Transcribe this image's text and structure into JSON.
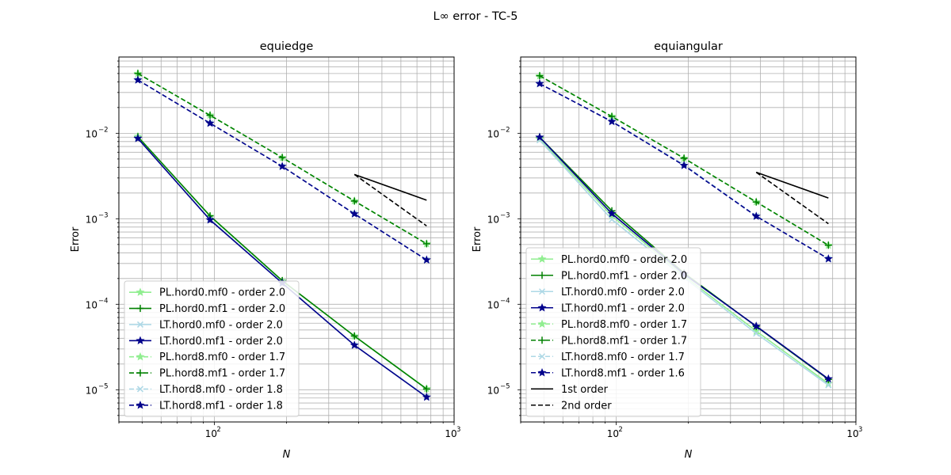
{
  "figure": {
    "suptitle": "L∞ error - TC-5"
  },
  "chart_data": [
    {
      "type": "line",
      "title": "equiedge",
      "xlabel": "N",
      "ylabel": "Error",
      "xscale": "log",
      "yscale": "log",
      "xlim": [
        40,
        1000
      ],
      "ylim": [
        4.2e-06,
        0.078
      ],
      "grid": true,
      "legend_position": "lower-left",
      "x_ticks": [
        {
          "mantissa": "10",
          "exponent": "2",
          "value": 100
        },
        {
          "mantissa": "10",
          "exponent": "3",
          "value": 1000
        }
      ],
      "y_ticks": [
        {
          "mantissa": "10",
          "exponent": "−5",
          "value": 1e-05
        },
        {
          "mantissa": "10",
          "exponent": "−4",
          "value": 0.0001
        },
        {
          "mantissa": "10",
          "exponent": "−3",
          "value": 0.001
        },
        {
          "mantissa": "10",
          "exponent": "−2",
          "value": 0.01
        }
      ],
      "series": [
        {
          "name": "PL.hord0.mf0 - order 2.0",
          "color": "#90ee90",
          "dash": "solid",
          "marker": "star",
          "x": [
            48,
            96,
            192,
            384,
            768
          ],
          "y": [
            0.0092,
            0.00107,
            0.000188,
            4.25e-05,
            1.03e-05
          ]
        },
        {
          "name": "PL.hord0.mf1 - order 2.0",
          "color": "#008000",
          "dash": "solid",
          "marker": "plus",
          "x": [
            48,
            96,
            192,
            384,
            768
          ],
          "y": [
            0.0091,
            0.00108,
            0.000189,
            4.25e-05,
            1.02e-05
          ]
        },
        {
          "name": "LT.hord0.mf0 - order 2.0",
          "color": "#add8e6",
          "dash": "solid",
          "marker": "x",
          "x": [
            48,
            96,
            192,
            384,
            768
          ],
          "y": [
            0.0087,
            0.00098,
            0.000178,
            3.32e-05,
            8.3e-06
          ]
        },
        {
          "name": "LT.hord0.mf1 - order 2.0",
          "color": "#00008b",
          "dash": "solid",
          "marker": "star",
          "x": [
            48,
            96,
            192,
            384,
            768
          ],
          "y": [
            0.0087,
            0.00097,
            0.000177,
            3.32e-05,
            8.2e-06
          ]
        },
        {
          "name": "PL.hord8.mf0 - order 1.7",
          "color": "#90ee90",
          "dash": "dashed",
          "marker": "star",
          "x": [
            48,
            96,
            192,
            384,
            768
          ],
          "y": [
            0.05,
            0.0163,
            0.0052,
            0.00162,
            0.00051
          ]
        },
        {
          "name": "PL.hord8.mf1 - order 1.7",
          "color": "#008000",
          "dash": "dashed",
          "marker": "plus",
          "x": [
            48,
            96,
            192,
            384,
            768
          ],
          "y": [
            0.05,
            0.0162,
            0.0052,
            0.00161,
            0.00051
          ]
        },
        {
          "name": "LT.hord8.mf0 - order 1.8",
          "color": "#add8e6",
          "dash": "dashed",
          "marker": "x",
          "x": [
            48,
            96,
            192,
            384,
            768
          ],
          "y": [
            0.042,
            0.0131,
            0.0041,
            0.00115,
            0.00033
          ]
        },
        {
          "name": "LT.hord8.mf1 - order 1.8",
          "color": "#00008b",
          "dash": "dashed",
          "marker": "star",
          "x": [
            48,
            96,
            192,
            384,
            768
          ],
          "y": [
            0.042,
            0.0131,
            0.0041,
            0.00114,
            0.00033
          ]
        },
        {
          "color": "#000000",
          "dash": "solid",
          "marker": "none",
          "x": [
            384,
            768
          ],
          "y": [
            0.0033,
            0.00165
          ]
        },
        {
          "color": "#000000",
          "dash": "dashed",
          "marker": "none",
          "x": [
            384,
            768
          ],
          "y": [
            0.0033,
            0.000825
          ]
        }
      ]
    },
    {
      "type": "line",
      "title": "equiangular",
      "xlabel": "N",
      "ylabel": "Error",
      "xscale": "log",
      "yscale": "log",
      "xlim": [
        40,
        1000
      ],
      "ylim": [
        4.2e-06,
        0.078
      ],
      "grid": true,
      "legend_position": "lower-left",
      "x_ticks": [
        {
          "mantissa": "10",
          "exponent": "2",
          "value": 100
        },
        {
          "mantissa": "10",
          "exponent": "3",
          "value": 1000
        }
      ],
      "y_ticks": [
        {
          "mantissa": "10",
          "exponent": "−5",
          "value": 1e-05
        },
        {
          "mantissa": "10",
          "exponent": "−4",
          "value": 0.0001
        },
        {
          "mantissa": "10",
          "exponent": "−3",
          "value": 0.001
        },
        {
          "mantissa": "10",
          "exponent": "−2",
          "value": 0.01
        }
      ],
      "series": [
        {
          "name": "PL.hord0.mf0 - order 2.0",
          "color": "#90ee90",
          "dash": "solid",
          "marker": "star",
          "x": [
            48,
            96,
            192,
            384,
            768
          ],
          "y": [
            0.0085,
            0.00108,
            0.000215,
            4.85e-05,
            1.18e-05
          ]
        },
        {
          "name": "PL.hord0.mf1 - order 2.0",
          "color": "#008000",
          "dash": "solid",
          "marker": "plus",
          "x": [
            48,
            96,
            192,
            384,
            768
          ],
          "y": [
            0.009,
            0.00124,
            0.000232,
            5.5e-05,
            1.32e-05
          ]
        },
        {
          "name": "LT.hord0.mf0 - order 2.0",
          "color": "#add8e6",
          "dash": "solid",
          "marker": "x",
          "x": [
            48,
            96,
            192,
            384,
            768
          ],
          "y": [
            0.0083,
            0.00098,
            0.000205,
            4.55e-05,
            1.13e-05
          ]
        },
        {
          "name": "LT.hord0.mf1 - order 2.0",
          "color": "#00008b",
          "dash": "solid",
          "marker": "star",
          "x": [
            48,
            96,
            192,
            384,
            768
          ],
          "y": [
            0.009,
            0.00115,
            0.000225,
            5.55e-05,
            1.34e-05
          ]
        },
        {
          "name": "PL.hord8.mf0 - order 1.7",
          "color": "#90ee90",
          "dash": "dashed",
          "marker": "star",
          "x": [
            48,
            96,
            192,
            384,
            768
          ],
          "y": [
            0.047,
            0.0158,
            0.0051,
            0.00158,
            0.00049
          ]
        },
        {
          "name": "PL.hord8.mf1 - order 1.7",
          "color": "#008000",
          "dash": "dashed",
          "marker": "plus",
          "x": [
            48,
            96,
            192,
            384,
            768
          ],
          "y": [
            0.047,
            0.0157,
            0.0051,
            0.00157,
            0.00049
          ]
        },
        {
          "name": "LT.hord8.mf0 - order 1.7",
          "color": "#add8e6",
          "dash": "dashed",
          "marker": "x",
          "x": [
            48,
            96,
            192,
            384,
            768
          ],
          "y": [
            0.038,
            0.0138,
            0.0043,
            0.00108,
            0.00034
          ]
        },
        {
          "name": "LT.hord8.mf1 - order 1.6",
          "color": "#00008b",
          "dash": "dashed",
          "marker": "star",
          "x": [
            48,
            96,
            192,
            384,
            768
          ],
          "y": [
            0.038,
            0.0137,
            0.0042,
            0.00107,
            0.00034
          ]
        },
        {
          "name": "1st order",
          "color": "#000000",
          "dash": "solid",
          "marker": "none",
          "x": [
            384,
            768
          ],
          "y": [
            0.0035,
            0.00175
          ]
        },
        {
          "name": "2nd order",
          "color": "#000000",
          "dash": "dashed",
          "marker": "none",
          "x": [
            384,
            768
          ],
          "y": [
            0.0035,
            0.000875
          ]
        }
      ]
    }
  ]
}
